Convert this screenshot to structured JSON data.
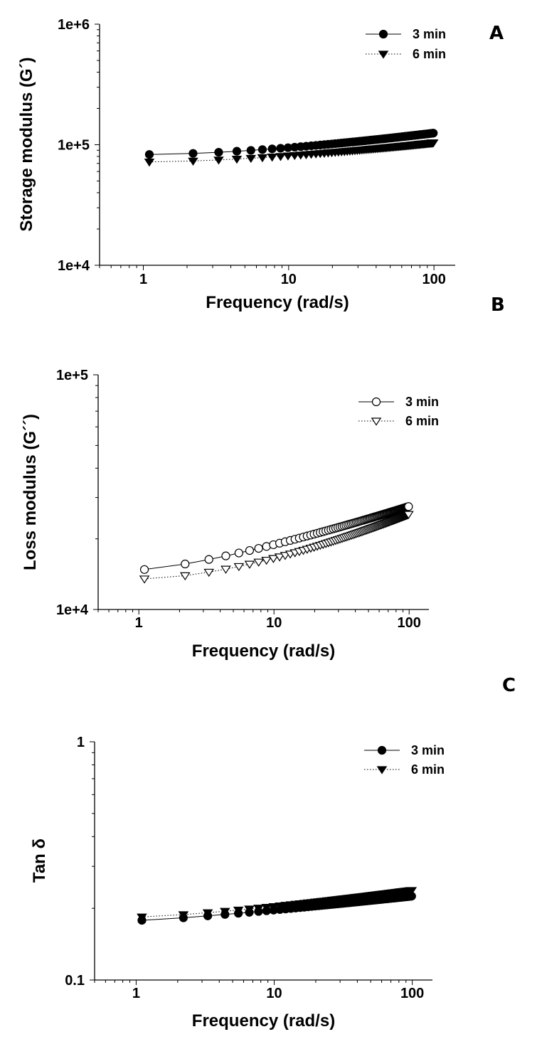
{
  "chart_data": [
    {
      "panel": "A",
      "type": "line",
      "xscale": "log",
      "yscale": "log",
      "xlabel": "Frequency (rad/s)",
      "ylabel": "Storage modulus (G´)",
      "xlim": [
        0.5,
        140
      ],
      "ylim": [
        10000,
        1000000
      ],
      "xticks": [
        1,
        10,
        100
      ],
      "xtick_labels": [
        "1",
        "10",
        "100"
      ],
      "yticks": [
        10000,
        100000,
        1000000
      ],
      "ytick_labels": [
        "1e+4",
        "1e+5",
        "1e+6"
      ],
      "legend_position": "top-right",
      "series": [
        {
          "name": "3 min",
          "marker": "circle-filled",
          "line": "solid",
          "f_start": 1.1,
          "f_end": 100,
          "v_start": 83000,
          "v_end": 125000,
          "curve": 1.6
        },
        {
          "name": "6 min",
          "marker": "triangle-down-filled",
          "line": "dotted",
          "f_start": 1.1,
          "f_end": 100,
          "v_start": 72000,
          "v_end": 104000,
          "curve": 1.6
        }
      ]
    },
    {
      "panel": "B",
      "type": "line",
      "xscale": "log",
      "yscale": "log",
      "xlabel": "Frequency (rad/s)",
      "ylabel": "Loss modulus (G´´)",
      "xlim": [
        0.5,
        140
      ],
      "ylim": [
        10000,
        100000
      ],
      "xticks": [
        1,
        10,
        100
      ],
      "xtick_labels": [
        "1",
        "10",
        "100"
      ],
      "yticks": [
        10000,
        100000
      ],
      "ytick_labels": [
        "1e+4",
        "1e+5"
      ],
      "legend_position": "top-right",
      "series": [
        {
          "name": "3 min",
          "marker": "circle-open",
          "line": "solid",
          "f_start": 1.1,
          "f_end": 100,
          "v_start": 14800,
          "v_end": 27500,
          "curve": 1.3
        },
        {
          "name": "6 min",
          "marker": "triangle-down-open",
          "line": "dotted",
          "f_start": 1.1,
          "f_end": 100,
          "v_start": 13500,
          "v_end": 25500,
          "curve": 1.6
        }
      ]
    },
    {
      "panel": "C",
      "type": "line",
      "xscale": "log",
      "yscale": "log",
      "xlabel": "Frequency (rad/s)",
      "ylabel": "Tan δ",
      "xlim": [
        0.5,
        140
      ],
      "ylim": [
        0.1,
        1
      ],
      "xticks": [
        1,
        10,
        100
      ],
      "xtick_labels": [
        "1",
        "10",
        "100"
      ],
      "yticks": [
        0.1,
        1
      ],
      "ytick_labels": [
        "0.1",
        "1"
      ],
      "legend_position": "top-right",
      "series": [
        {
          "name": "3 min",
          "marker": "circle-filled",
          "line": "solid",
          "f_start": 1.1,
          "f_end": 100,
          "v_start": 0.178,
          "v_end": 0.225,
          "curve": 1.2
        },
        {
          "name": "6 min",
          "marker": "triangle-down-filled",
          "line": "dotted",
          "f_start": 1.1,
          "f_end": 100,
          "v_start": 0.184,
          "v_end": 0.238,
          "curve": 1.3
        }
      ]
    }
  ]
}
